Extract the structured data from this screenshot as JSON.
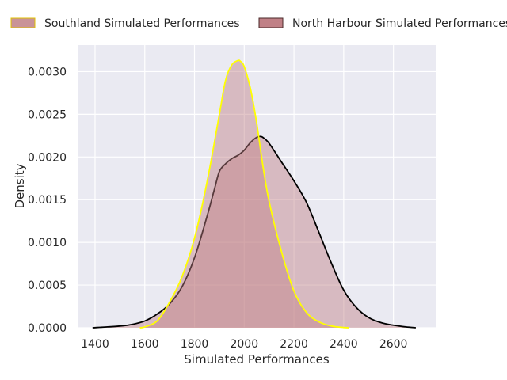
{
  "chart_data": {
    "type": "area",
    "xlabel": "Simulated Performances",
    "ylabel": "Density",
    "xlim": [
      1330,
      2770
    ],
    "ylim": [
      0,
      0.00331
    ],
    "xticks": [
      1400,
      1600,
      1800,
      2000,
      2200,
      2400,
      2600
    ],
    "yticks": [
      "0.0000",
      "0.0005",
      "0.0010",
      "0.0015",
      "0.0020",
      "0.0025",
      "0.0030"
    ],
    "ytick_values": [
      0,
      0.0005,
      0.001,
      0.0015,
      0.002,
      0.0025,
      0.003
    ],
    "grid": true,
    "legend_position": "top",
    "background": "#eaeaf2",
    "series": [
      {
        "name": "Southland Simulated Performances",
        "fill": "#c08086",
        "line": "#ffff00",
        "x": [
          1580,
          1600,
          1650,
          1700,
          1750,
          1800,
          1850,
          1900,
          1925,
          1950,
          1975,
          1985,
          2000,
          2025,
          2050,
          2075,
          2100,
          2150,
          2200,
          2250,
          2300,
          2350,
          2400,
          2420
        ],
        "y": [
          0.0,
          1e-05,
          8e-05,
          0.0003,
          0.0006,
          0.00105,
          0.0017,
          0.0025,
          0.0029,
          0.00308,
          0.00313,
          0.00312,
          0.00306,
          0.0028,
          0.0024,
          0.0019,
          0.00148,
          0.00089,
          0.00043,
          0.00018,
          7e-05,
          2e-05,
          3e-06,
          0.0
        ]
      },
      {
        "name": "North Harbour Simulated Performances",
        "fill": "#c08086",
        "line": "#000000",
        "x": [
          1390,
          1450,
          1500,
          1550,
          1600,
          1650,
          1700,
          1750,
          1800,
          1850,
          1880,
          1900,
          1925,
          1950,
          1975,
          2000,
          2025,
          2050,
          2065,
          2075,
          2100,
          2150,
          2200,
          2250,
          2300,
          2350,
          2400,
          2450,
          2500,
          2550,
          2600,
          2650,
          2690
        ],
        "y": [
          0.0,
          1e-05,
          2e-05,
          4e-05,
          8e-05,
          0.00016,
          0.00028,
          0.00048,
          0.00082,
          0.0013,
          0.00162,
          0.00183,
          0.00192,
          0.00198,
          0.00202,
          0.00208,
          0.00217,
          0.00223,
          0.00224,
          0.00223,
          0.00216,
          0.00194,
          0.00172,
          0.00147,
          0.00112,
          0.00076,
          0.00044,
          0.00024,
          0.00012,
          6e-05,
          3e-05,
          1e-05,
          0.0
        ]
      }
    ]
  }
}
